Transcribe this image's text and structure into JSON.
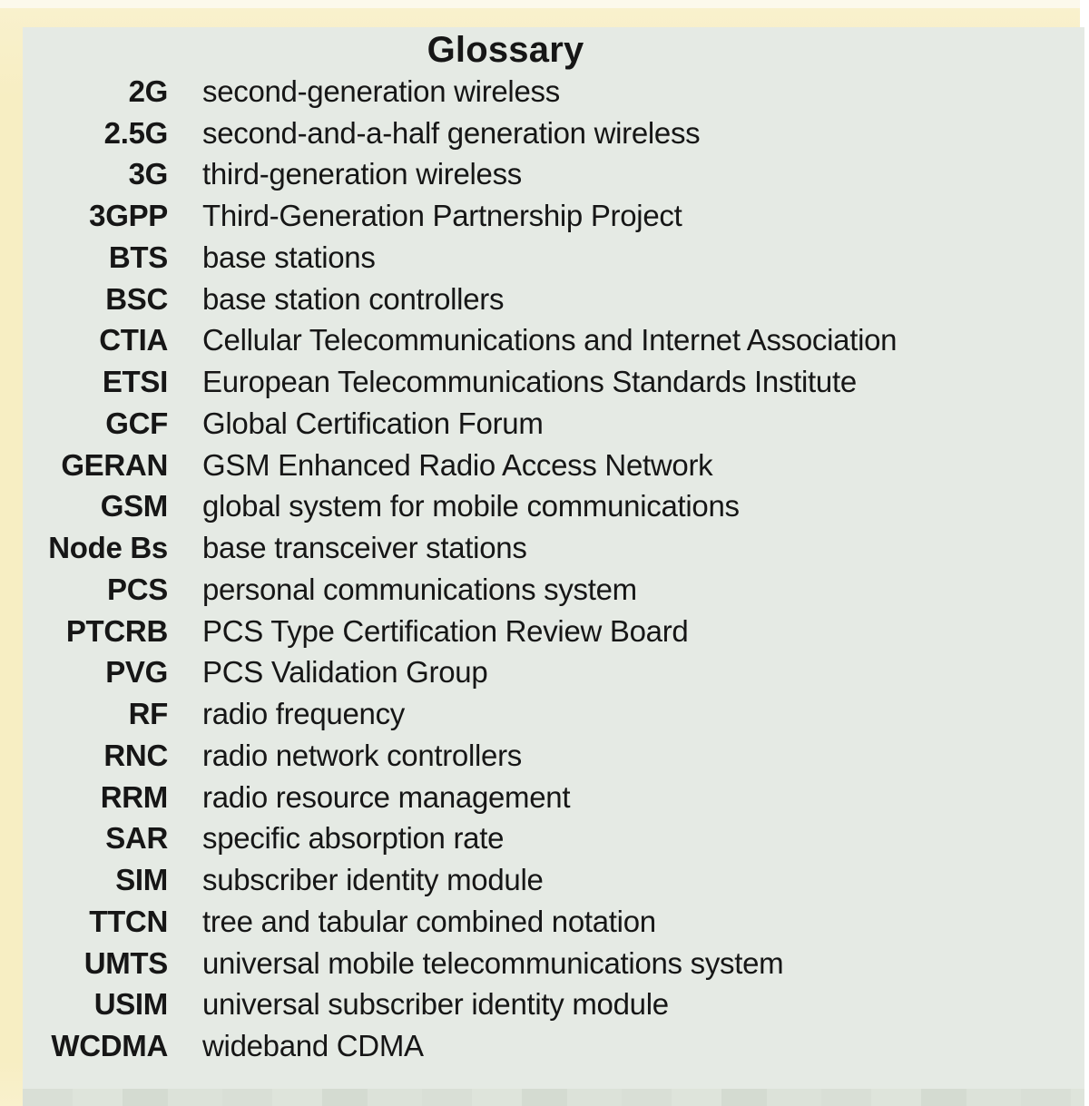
{
  "panel": {
    "title": "Glossary",
    "entries": [
      {
        "abbr": "2G",
        "def": "second-generation wireless"
      },
      {
        "abbr": "2.5G",
        "def": "second-and-a-half generation wireless"
      },
      {
        "abbr": "3G",
        "def": "third-generation wireless"
      },
      {
        "abbr": "3GPP",
        "def": "Third-Generation Partnership Project"
      },
      {
        "abbr": "BTS",
        "def": "base stations"
      },
      {
        "abbr": "BSC",
        "def": "base station controllers"
      },
      {
        "abbr": "CTIA",
        "def": "Cellular Telecommunications and Internet Association"
      },
      {
        "abbr": "ETSI",
        "def": "European Telecommunications Standards Institute"
      },
      {
        "abbr": "GCF",
        "def": "Global Certification Forum"
      },
      {
        "abbr": "GERAN",
        "def": "GSM Enhanced Radio Access Network"
      },
      {
        "abbr": "GSM",
        "def": "global system for mobile communications"
      },
      {
        "abbr": "Node Bs",
        "def": "base transceiver stations"
      },
      {
        "abbr": "PCS",
        "def": "personal communications system"
      },
      {
        "abbr": "PTCRB",
        "def": "PCS Type Certification Review Board"
      },
      {
        "abbr": "PVG",
        "def": "PCS Validation Group"
      },
      {
        "abbr": "RF",
        "def": "radio frequency"
      },
      {
        "abbr": "RNC",
        "def": "radio network controllers"
      },
      {
        "abbr": "RRM",
        "def": "radio resource management"
      },
      {
        "abbr": "SAR",
        "def": "specific absorption rate"
      },
      {
        "abbr": "SIM",
        "def": "subscriber identity module"
      },
      {
        "abbr": "TTCN",
        "def": "tree and tabular combined notation"
      },
      {
        "abbr": "UMTS",
        "def": "universal mobile telecommunications system"
      },
      {
        "abbr": "USIM",
        "def": "universal subscriber identity module"
      },
      {
        "abbr": "WCDMA",
        "def": "wideband CDMA"
      }
    ]
  },
  "colors": {
    "page_bg": "#ffffff",
    "top_strip": "#fcf9ec",
    "frame": "#f7eec3",
    "frame_light": "#f9f1cd",
    "panel_bg": "#e5eae4",
    "bottom_strip": "#d9dfd6",
    "text": "#161616"
  }
}
